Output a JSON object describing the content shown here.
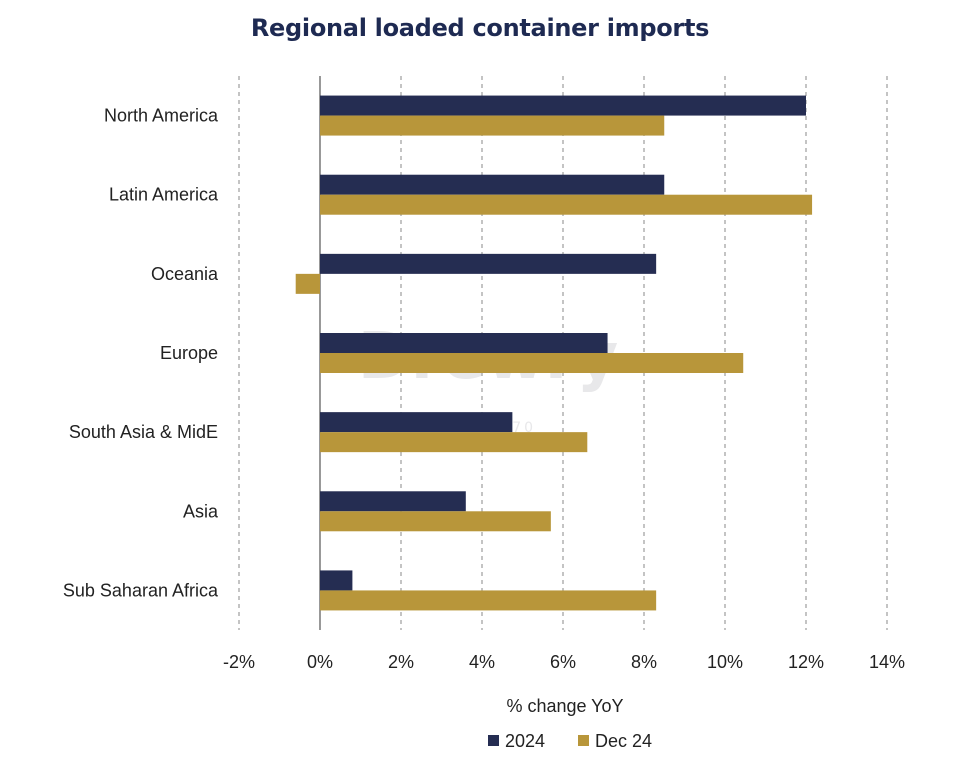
{
  "chart_data": {
    "type": "bar",
    "orientation": "horizontal",
    "title": "Regional loaded container imports",
    "xlabel": "% change YoY",
    "ylabel": "",
    "categories": [
      "North America",
      "Latin America",
      "Oceania",
      "Europe",
      "South Asia & MidE",
      "Asia",
      "Sub Saharan Africa"
    ],
    "series": [
      {
        "name": "2024",
        "color": "#252d52",
        "values": [
          12.0,
          8.5,
          8.3,
          7.1,
          4.75,
          3.6,
          0.8
        ]
      },
      {
        "name": "Dec 24",
        "color": "#b8963a",
        "values": [
          8.5,
          12.15,
          -0.6,
          10.45,
          6.6,
          5.7,
          8.3
        ]
      }
    ],
    "xlim": [
      -2,
      14
    ],
    "xticks": [
      -2,
      0,
      2,
      4,
      6,
      8,
      10,
      12,
      14
    ],
    "xtick_labels": [
      "-2%",
      "0%",
      "2%",
      "4%",
      "6%",
      "8%",
      "10%",
      "12%",
      "14%"
    ],
    "grid": "vertical dashed",
    "legend_position": "bottom-center"
  },
  "watermark": {
    "brand": "Drewry",
    "sub": "EST. 1970"
  }
}
